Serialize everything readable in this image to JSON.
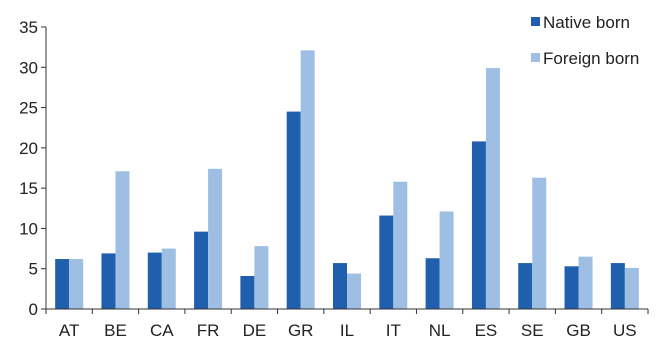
{
  "chart_data": {
    "type": "bar",
    "title": "",
    "xlabel": "",
    "ylabel": "",
    "ylim": [
      0,
      35
    ],
    "yticks": [
      0,
      5,
      10,
      15,
      20,
      25,
      30,
      35
    ],
    "grid": false,
    "legend_position": "top-right",
    "categories": [
      "AT",
      "BE",
      "CA",
      "FR",
      "DE",
      "GR",
      "IL",
      "IT",
      "NL",
      "ES",
      "SE",
      "GB",
      "US"
    ],
    "series": [
      {
        "name": "Native born",
        "color": "#1f5fae",
        "values": [
          6.2,
          6.9,
          7.0,
          9.6,
          4.1,
          24.5,
          5.7,
          11.6,
          6.3,
          20.8,
          5.7,
          5.3,
          5.7
        ]
      },
      {
        "name": "Foreign born",
        "color": "#9ebfe3",
        "values": [
          6.2,
          17.1,
          7.5,
          17.4,
          7.8,
          32.1,
          4.4,
          15.8,
          12.1,
          29.9,
          16.3,
          6.5,
          5.1
        ]
      }
    ]
  }
}
